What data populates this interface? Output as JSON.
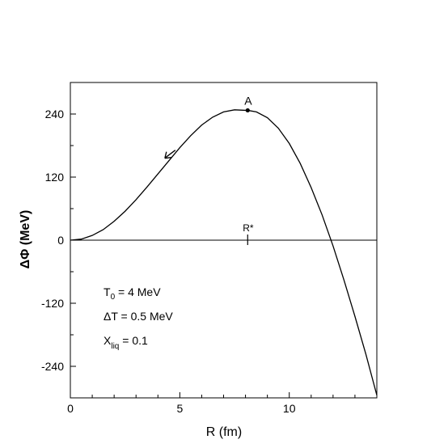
{
  "chart_data": {
    "type": "line",
    "xlabel": "R (fm)",
    "ylabel": "ΔΦ (MeV)",
    "xlim": [
      0,
      14
    ],
    "ylim": [
      -300,
      300
    ],
    "x_ticks": [
      0,
      5,
      10
    ],
    "x_tick_labels": [
      "0",
      "5",
      "10"
    ],
    "y_ticks": [
      -240,
      -120,
      0,
      120,
      240
    ],
    "y_tick_labels": [
      "-240",
      "-120",
      "0",
      "120",
      "240"
    ],
    "grid": false,
    "legend": "none",
    "reference_line_y": 0,
    "series": [
      {
        "color": "#000000",
        "x": [
          0,
          0.5,
          1,
          1.5,
          2,
          2.5,
          3,
          3.5,
          4,
          4.5,
          5,
          5.5,
          6,
          6.5,
          7,
          7.5,
          8,
          8.1,
          8.5,
          9,
          9.5,
          10,
          10.5,
          11,
          11.5,
          12,
          12.5,
          13,
          13.5,
          14
        ],
        "y": [
          0,
          2,
          9,
          20,
          36,
          55,
          77,
          101,
          126,
          151,
          176,
          199,
          219,
          234,
          244,
          248,
          247,
          247,
          244,
          233,
          213,
          184,
          146,
          100,
          48,
          -11,
          -76,
          -145,
          -217,
          -295
        ]
      }
    ],
    "points": [
      {
        "label": "A",
        "x": 8.1,
        "y": 247
      }
    ],
    "markers": [
      {
        "label": "R*",
        "x": 8.1,
        "y": 0
      }
    ],
    "arrow": {
      "x": 4.5,
      "y": 162,
      "direction": "down-left"
    },
    "annotations": {
      "t0_main": "T",
      "t0_sub": "0",
      "t0_rest": " = 4 MeV",
      "dt": "ΔT = 0.5 MeV",
      "x_main": "X",
      "x_sub": "liq",
      "x_rest": " = 0.1"
    }
  }
}
